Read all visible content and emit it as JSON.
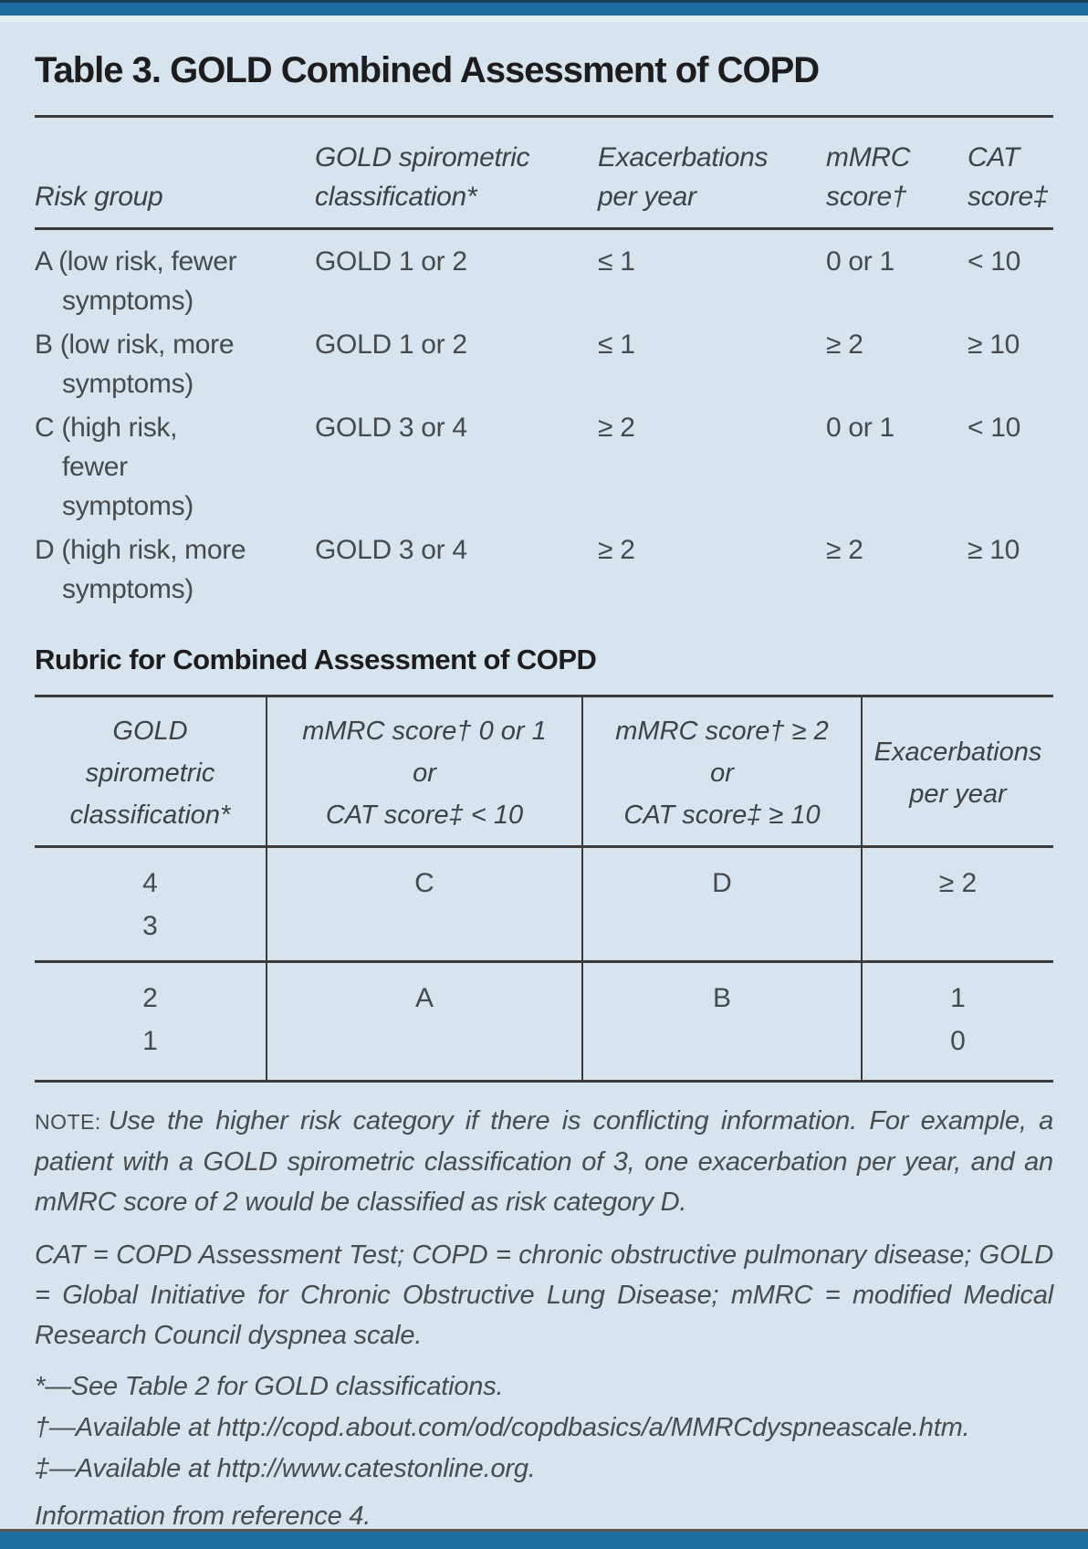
{
  "header": {
    "title": "Table 3. GOLD Combined Assessment of COPD"
  },
  "colors": {
    "accent_blue": "#1e6da4",
    "accent_navy": "#16425f",
    "card_background": "#d5e4ee",
    "rule_gray": "#3b3b3b",
    "title_text": "#1d1d1f",
    "body_text": "#454a4e"
  },
  "table1": {
    "columns": {
      "risk_group": "Risk group",
      "gold_class": "GOLD spirometric\nclassification*",
      "exacerbations": "Exacerbations\nper year",
      "mmrc": "mMRC\nscore†",
      "cat": "CAT\nscore‡"
    },
    "rows": [
      {
        "risk_group": "A (low risk, fewer\nsymptoms)",
        "gold_class": "GOLD 1 or 2",
        "exacerbations": "≤ 1",
        "mmrc": "0 or 1",
        "cat": "< 10"
      },
      {
        "risk_group": "B (low risk, more\nsymptoms)",
        "gold_class": "GOLD 1 or 2",
        "exacerbations": "≤ 1",
        "mmrc": "≥ 2",
        "cat": "≥ 10"
      },
      {
        "risk_group": "C (high risk,\nfewer\nsymptoms)",
        "gold_class": "GOLD 3 or 4",
        "exacerbations": "≥ 2",
        "mmrc": "0 or 1",
        "cat": "< 10"
      },
      {
        "risk_group": "D (high risk, more\nsymptoms)",
        "gold_class": "GOLD 3 or 4",
        "exacerbations": "≥ 2",
        "mmrc": "≥ 2",
        "cat": "≥ 10"
      }
    ]
  },
  "rubric": {
    "title": "Rubric for Combined Assessment of COPD",
    "columns": {
      "gold_class": "GOLD\nspirometric\nclassification*",
      "low_symptoms": "mMRC score† 0 or 1\nor\nCAT score‡ < 10",
      "high_symptoms": "mMRC score† ≥ 2\nor\nCAT score‡ ≥ 10",
      "exacerbations": "Exacerbations\nper year"
    },
    "rows": [
      {
        "gold_class": "4\n3",
        "low_symptoms": "C",
        "high_symptoms": "D",
        "exacerbations": "≥ 2"
      },
      {
        "gold_class": "2\n1",
        "low_symptoms": "A",
        "high_symptoms": "B",
        "exacerbations": "1\n0"
      }
    ]
  },
  "notes": {
    "note_label": "NOTE:",
    "note_text": "Use the higher risk category if there is conflicting information. For example, a patient with a GOLD spirometric classification of 3, one exacerbation per year, and an mMRC score of 2 would be classified as risk category D.",
    "abbreviations": "CAT = COPD Assessment Test; COPD = chronic obstructive pulmonary disease; GOLD = Global Initiative for Chronic Obstructive Lung Disease; mMRC = modified Medical Research Council dyspnea scale.",
    "source": "Information from reference 4."
  },
  "footnotes": [
    "*—See Table 2 for GOLD classifications.",
    "†—Available at http://copd.about.com/od/copdbasics/a/MMRCdyspneascale.htm.",
    "‡—Available at http://www.catestonline.org."
  ]
}
